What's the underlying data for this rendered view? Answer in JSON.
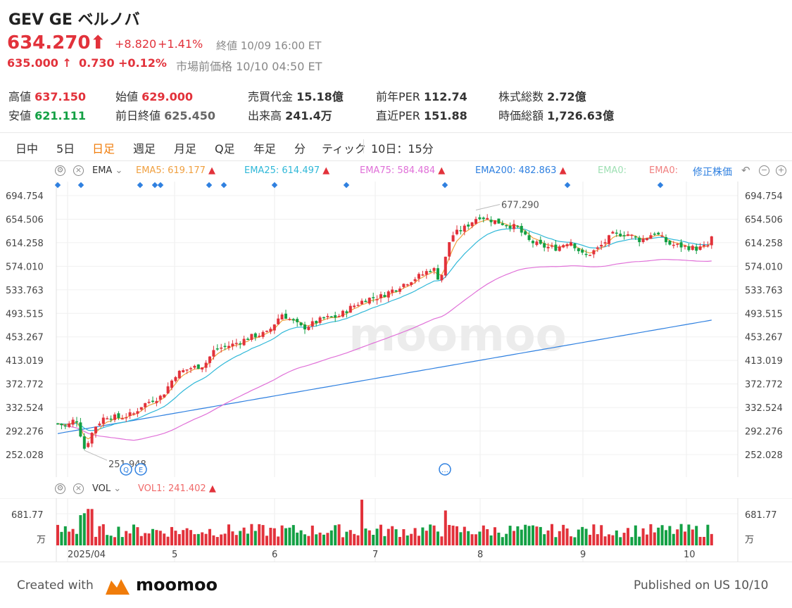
{
  "header": {
    "title": "GEV GE ベルノバ",
    "price": "634.270",
    "change": "+8.820",
    "change_pct": "+1.41%",
    "close_label": "終値 10/09 16:00 ET",
    "pre_price": "635.000",
    "pre_change": "0.730",
    "pre_change_pct": "+0.12%",
    "pre_label": "市場前価格 10/10 04:50 ET"
  },
  "stats": [
    {
      "label": "高値",
      "value": "637.150",
      "color": "red"
    },
    {
      "label": "安値",
      "value": "621.111",
      "color": "green"
    },
    {
      "label": "始値",
      "value": "629.000",
      "color": "red"
    },
    {
      "label": "前日終値",
      "value": "625.450",
      "color": "gray"
    },
    {
      "label": "売買代金",
      "value": "15.18億",
      "color": "dark"
    },
    {
      "label": "出来高",
      "value": "241.4万",
      "color": "dark"
    },
    {
      "label": "前年PER",
      "value": "112.74",
      "color": "dark"
    },
    {
      "label": "直近PER",
      "value": "151.88",
      "color": "dark"
    },
    {
      "label": "株式総数",
      "value": "2.72億",
      "color": "dark"
    },
    {
      "label": "時価総額",
      "value": "1,726.63億",
      "color": "dark"
    }
  ],
  "tabs": [
    "日中",
    "5日",
    "日足",
    "週足",
    "月足",
    "Q足",
    "年足",
    "分",
    "ティック",
    "10日：15分"
  ],
  "active_tab": "日足",
  "indicators": {
    "ema_label": "EMA",
    "ema5": "EMA5:",
    "ema5_v": "619.177",
    "ema25": "EMA25:",
    "ema25_v": "614.497",
    "ema75": "EMA75:",
    "ema75_v": "584.484",
    "ema200": "EMA200:",
    "ema200_v": "482.863",
    "ema0a": "EMA0:",
    "ema0b": "EMA0:",
    "adjusted": "修正株価",
    "vol_label": "VOL",
    "vol1": "VOL1:",
    "vol1_v": "241.402"
  },
  "colors": {
    "up": "#e2323b",
    "down": "#13a044",
    "ema5": "#f0a040",
    "ema25": "#30b8d8",
    "ema75": "#e070d8",
    "ema200": "#2f80e0"
  },
  "annotations": {
    "high": "677.290",
    "low": "251.948"
  },
  "vol_axis": {
    "max": "681.77",
    "unit": "万"
  },
  "footer": {
    "created": "Created with",
    "brand": "moomoo",
    "published": "Published on US 10/10"
  },
  "watermark": "moomoo",
  "chart_data": {
    "type": "candlestick",
    "y_ticks": [
      694.754,
      654.506,
      614.258,
      574.01,
      533.763,
      493.515,
      453.267,
      413.019,
      372.772,
      332.524,
      292.276,
      252.028
    ],
    "ylim": [
      252.028,
      694.754
    ],
    "x_labels": [
      "2025/04",
      "5",
      "6",
      "7",
      "8",
      "9",
      "10"
    ],
    "series": [
      {
        "name": "EMA5",
        "values": [
          619.177
        ]
      },
      {
        "name": "EMA25",
        "values": [
          614.497
        ]
      },
      {
        "name": "EMA75",
        "values": [
          584.484
        ]
      },
      {
        "name": "EMA200",
        "values": [
          482.863
        ]
      }
    ],
    "volume_ylim": [
      0,
      681.77
    ],
    "last_volume": 241.402,
    "high_marker": 677.29,
    "low_marker": 251.948
  }
}
